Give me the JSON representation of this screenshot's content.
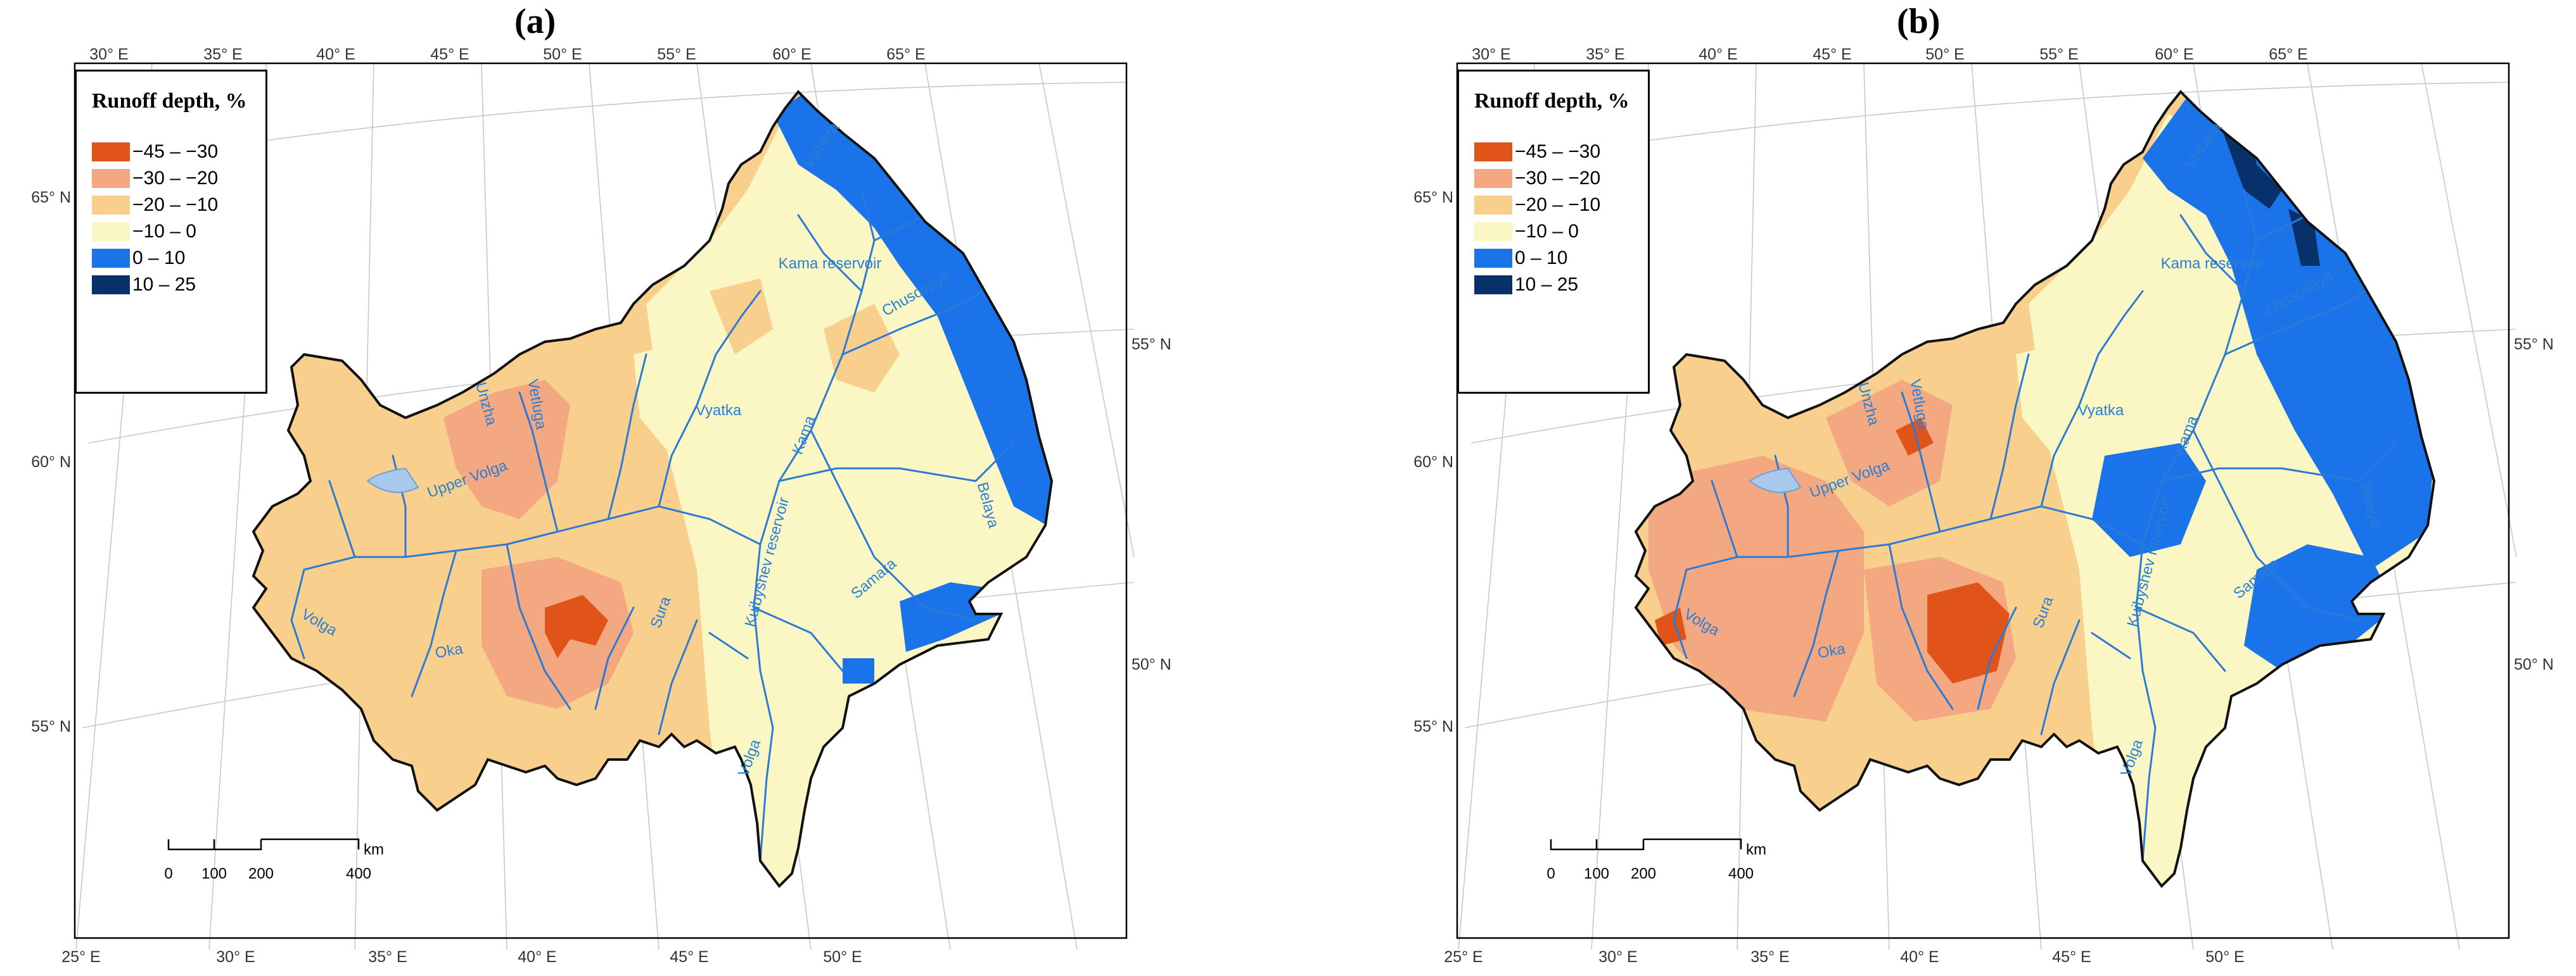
{
  "panels": [
    {
      "title": "(a)",
      "river_colors": "#2b7bd6",
      "region_mix": "a"
    },
    {
      "title": "(b)",
      "river_colors": "#2b7bd6",
      "region_mix": "b"
    }
  ],
  "legend": {
    "title": "Runoff depth, %",
    "items": [
      {
        "label": "−45 – −30",
        "color": "#e0541a"
      },
      {
        "label": "−30 – −20",
        "color": "#f4a882"
      },
      {
        "label": "−20 – −10",
        "color": "#f8cf8c"
      },
      {
        "label": "−10 – 0",
        "color": "#fbf7c4"
      },
      {
        "label": "0 – 10",
        "color": "#1a73e8"
      },
      {
        "label": "10 – 25",
        "color": "#08306b"
      }
    ]
  },
  "axes": {
    "top_lon": [
      "30° E",
      "35° E",
      "40° E",
      "45° E",
      "50° E",
      "55° E",
      "60° E",
      "65° E"
    ],
    "bottom_lon": [
      "25° E",
      "30° E",
      "35° E",
      "40° E",
      "45° E",
      "50° E"
    ],
    "left_lat": [
      "65° N",
      "60° N",
      "55° N"
    ],
    "right_lat": [
      "55° N",
      "50° N"
    ]
  },
  "scale_bar": {
    "labels": [
      "0",
      "100",
      "200",
      "400"
    ],
    "unit": "km"
  },
  "river_labels": [
    "Vishera",
    "Kama reservoir",
    "Chusovaya",
    "Vyatka",
    "Unzha",
    "Vetluga",
    "Upper Volga",
    "Kama",
    "Belaya",
    "Kuibyshev reservoir",
    "Samara",
    "Sura",
    "Oka",
    "Volga",
    "Volga"
  ]
}
